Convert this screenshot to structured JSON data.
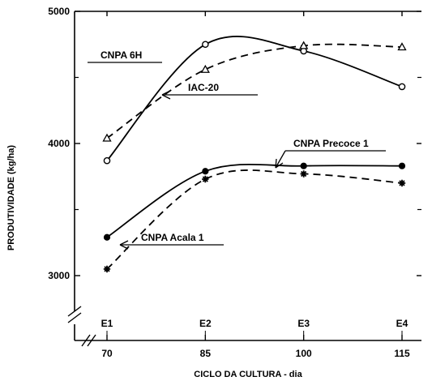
{
  "chart_data": {
    "type": "line",
    "xlabel": "CICLO DA CULTURA - dia",
    "ylabel": "PRODUTIVIDADE (kg/ha)",
    "x": [
      70,
      85,
      100,
      115
    ],
    "x_tick_labels": [
      "70",
      "85",
      "100",
      "115"
    ],
    "stage_labels": [
      "E1",
      "E2",
      "E3",
      "E4"
    ],
    "ylim": [
      2650,
      5000
    ],
    "y_ticks": [
      3000,
      4000,
      5000
    ],
    "y_tick_labels": [
      "3000",
      "4000",
      "5000"
    ],
    "grid": false,
    "series": [
      {
        "name": "CNPA 6H",
        "values": [
          3870,
          4750,
          4700,
          4430
        ],
        "line": "solid",
        "marker": "open-circle"
      },
      {
        "name": "IAC-20",
        "values": [
          4040,
          4560,
          4740,
          4730
        ],
        "line": "dashed",
        "marker": "open-triangle"
      },
      {
        "name": "CNPA Precoce 1",
        "values": [
          3290,
          3790,
          3830,
          3830
        ],
        "line": "solid",
        "marker": "filled-circle"
      },
      {
        "name": "CNPA Acala 1",
        "values": [
          3050,
          3730,
          3770,
          3700
        ],
        "line": "dashed",
        "marker": "star"
      }
    ]
  }
}
